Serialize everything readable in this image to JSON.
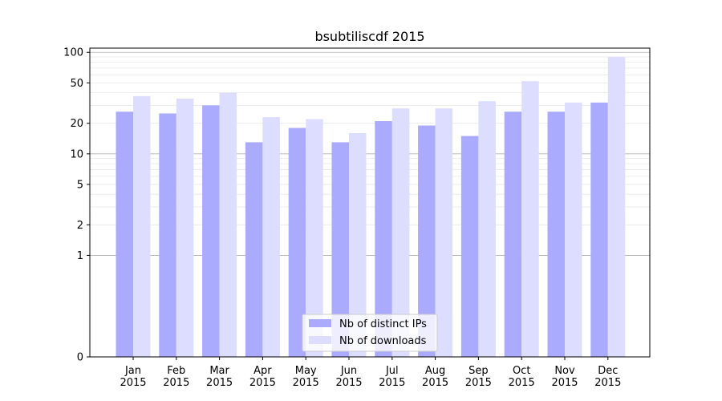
{
  "chart_data": {
    "type": "bar",
    "title": "bsubtiliscdf 2015",
    "xlabel": "",
    "ylabel": "",
    "yscale": "symlog",
    "ylim": [
      0,
      110
    ],
    "yticks": [
      0,
      1,
      2,
      5,
      10,
      20,
      50,
      100
    ],
    "categories": [
      "Jan\n2015",
      "Feb\n2015",
      "Mar\n2015",
      "Apr\n2015",
      "May\n2015",
      "Jun\n2015",
      "Jul\n2015",
      "Aug\n2015",
      "Sep\n2015",
      "Oct\n2015",
      "Nov\n2015",
      "Dec\n2015"
    ],
    "series": [
      {
        "name": "Nb of distinct IPs",
        "color": "#aaaaff",
        "values": [
          26,
          25,
          30,
          13,
          18,
          13,
          21,
          19,
          15,
          26,
          26,
          32
        ]
      },
      {
        "name": "Nb of downloads",
        "color": "#ddddff",
        "values": [
          37,
          35,
          40,
          23,
          22,
          16,
          28,
          28,
          33,
          52,
          32,
          90
        ]
      }
    ],
    "grid": true,
    "legend": "bottom-center"
  }
}
